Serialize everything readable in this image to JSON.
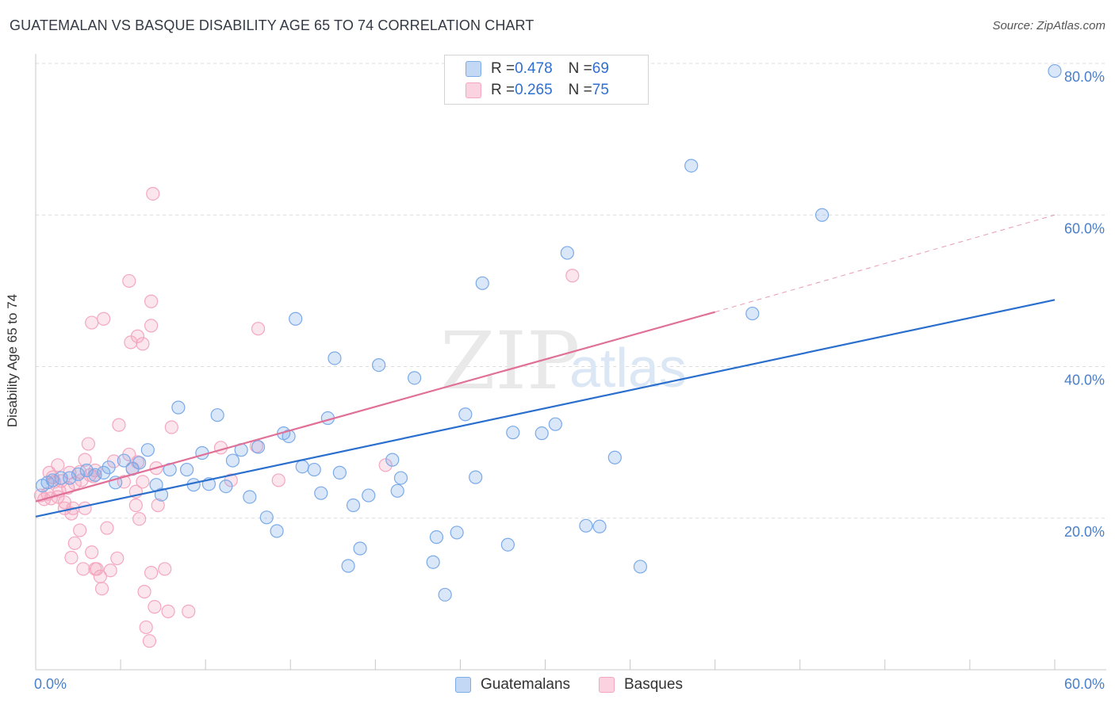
{
  "title": "GUATEMALAN VS BASQUE DISABILITY AGE 65 TO 74 CORRELATION CHART",
  "source": "Source: ZipAtlas.com",
  "watermark": {
    "zip": "ZIP",
    "atlas": "atlas"
  },
  "legend": {
    "row1": {
      "r_label": "R = ",
      "r_value": "0.478",
      "n_label": "N = ",
      "n_value": "69"
    },
    "row2": {
      "r_label": "R = ",
      "r_value": "0.265",
      "n_label": "N = ",
      "n_value": "75"
    }
  },
  "chart_data": {
    "type": "scatter",
    "title": "GUATEMALAN VS BASQUE DISABILITY AGE 65 TO 74 CORRELATION CHART",
    "xlabel": "",
    "ylabel": "Disability Age 65 to 74",
    "xlim": [
      0,
      60
    ],
    "ylim": [
      0,
      80
    ],
    "x_tick_labels": [
      "0.0%",
      "60.0%"
    ],
    "y_ticks": [
      20,
      40,
      60,
      80
    ],
    "y_tick_labels": [
      "20.0%",
      "40.0%",
      "60.0%",
      "80.0%"
    ],
    "colors": {
      "guatemalans": "#7aaae8",
      "basques": "#f4a7bf",
      "guatemalans_line": "#2a6fcd",
      "basques_line": "#e07098"
    },
    "series": [
      {
        "name": "Guatemalans",
        "r": 0.478,
        "n": 69,
        "trend": {
          "x0": 0,
          "y0": 20.2,
          "x1": 60,
          "y1": 48.8
        },
        "points": [
          [
            0.4,
            24.3
          ],
          [
            0.7,
            24.7
          ],
          [
            1.0,
            25.0
          ],
          [
            1.5,
            25.3
          ],
          [
            2.0,
            25.3
          ],
          [
            2.5,
            25.8
          ],
          [
            3.0,
            26.3
          ],
          [
            3.5,
            25.7
          ],
          [
            4.0,
            26.0
          ],
          [
            4.3,
            26.7
          ],
          [
            4.7,
            24.7
          ],
          [
            5.2,
            27.6
          ],
          [
            5.7,
            26.5
          ],
          [
            6.1,
            27.3
          ],
          [
            6.6,
            29.0
          ],
          [
            7.1,
            24.4
          ],
          [
            7.4,
            23.1
          ],
          [
            7.9,
            26.4
          ],
          [
            8.4,
            34.6
          ],
          [
            8.9,
            26.4
          ],
          [
            9.3,
            24.4
          ],
          [
            9.8,
            28.6
          ],
          [
            10.2,
            24.5
          ],
          [
            10.7,
            33.6
          ],
          [
            11.2,
            24.2
          ],
          [
            11.6,
            27.6
          ],
          [
            12.1,
            29.0
          ],
          [
            12.6,
            22.8
          ],
          [
            13.1,
            29.4
          ],
          [
            13.6,
            20.1
          ],
          [
            14.2,
            18.3
          ],
          [
            14.6,
            31.2
          ],
          [
            14.9,
            30.8
          ],
          [
            15.3,
            46.3
          ],
          [
            15.7,
            26.8
          ],
          [
            16.4,
            26.4
          ],
          [
            16.8,
            23.3
          ],
          [
            17.2,
            33.2
          ],
          [
            17.6,
            41.1
          ],
          [
            17.9,
            26.0
          ],
          [
            18.4,
            13.7
          ],
          [
            18.7,
            21.7
          ],
          [
            19.1,
            16.0
          ],
          [
            19.6,
            23.0
          ],
          [
            20.2,
            40.2
          ],
          [
            21.0,
            27.7
          ],
          [
            21.3,
            23.6
          ],
          [
            21.5,
            25.3
          ],
          [
            22.3,
            38.5
          ],
          [
            23.4,
            14.2
          ],
          [
            23.6,
            17.5
          ],
          [
            24.1,
            9.9
          ],
          [
            24.8,
            18.1
          ],
          [
            25.3,
            33.7
          ],
          [
            25.9,
            25.4
          ],
          [
            26.3,
            51.0
          ],
          [
            27.8,
            16.5
          ],
          [
            28.1,
            31.3
          ],
          [
            29.8,
            31.2
          ],
          [
            30.6,
            32.4
          ],
          [
            31.3,
            55.0
          ],
          [
            32.4,
            19.0
          ],
          [
            33.2,
            18.9
          ],
          [
            34.1,
            28.0
          ],
          [
            35.6,
            13.6
          ],
          [
            38.6,
            66.5
          ],
          [
            42.2,
            47.0
          ],
          [
            46.3,
            60.0
          ],
          [
            60.0,
            79.0
          ]
        ]
      },
      {
        "name": "Basques",
        "r": 0.265,
        "n": 75,
        "trend": {
          "x0": 0,
          "y0": 22.2,
          "x1": 40,
          "y1": 47.2,
          "x_dash_end": 60,
          "y_dash_end": 60
        },
        "points": [
          [
            0.3,
            23.0
          ],
          [
            0.5,
            22.5
          ],
          [
            0.7,
            23.2
          ],
          [
            0.9,
            22.6
          ],
          [
            1.1,
            24.8
          ],
          [
            1.3,
            22.8
          ],
          [
            0.8,
            26.0
          ],
          [
            1.3,
            27.0
          ],
          [
            1.0,
            25.4
          ],
          [
            1.4,
            23.6
          ],
          [
            1.7,
            22.1
          ],
          [
            1.9,
            24.0
          ],
          [
            2.0,
            26.0
          ],
          [
            2.2,
            21.3
          ],
          [
            1.7,
            21.3
          ],
          [
            2.1,
            20.6
          ],
          [
            1.5,
            24.9
          ],
          [
            2.3,
            24.6
          ],
          [
            2.6,
            26.1
          ],
          [
            2.9,
            27.7
          ],
          [
            3.2,
            25.7
          ],
          [
            2.7,
            25.0
          ],
          [
            3.4,
            25.5
          ],
          [
            3.5,
            26.3
          ],
          [
            2.9,
            21.3
          ],
          [
            2.6,
            18.4
          ],
          [
            2.3,
            16.7
          ],
          [
            2.1,
            14.8
          ],
          [
            2.8,
            13.3
          ],
          [
            3.3,
            15.5
          ],
          [
            3.6,
            13.3
          ],
          [
            3.8,
            12.3
          ],
          [
            3.1,
            29.8
          ],
          [
            4.2,
            18.7
          ],
          [
            3.5,
            13.3
          ],
          [
            3.9,
            10.7
          ],
          [
            3.3,
            45.8
          ],
          [
            4.0,
            46.3
          ],
          [
            4.4,
            13.1
          ],
          [
            4.8,
            14.7
          ],
          [
            4.6,
            27.5
          ],
          [
            4.9,
            32.3
          ],
          [
            5.2,
            24.8
          ],
          [
            5.5,
            28.4
          ],
          [
            5.6,
            43.2
          ],
          [
            6.0,
            44.0
          ],
          [
            6.3,
            43.0
          ],
          [
            5.5,
            51.3
          ],
          [
            6.0,
            27.4
          ],
          [
            5.9,
            21.7
          ],
          [
            5.7,
            26.6
          ],
          [
            5.9,
            23.5
          ],
          [
            6.1,
            19.9
          ],
          [
            6.4,
            10.3
          ],
          [
            6.8,
            12.8
          ],
          [
            6.8,
            45.4
          ],
          [
            6.3,
            24.8
          ],
          [
            6.5,
            5.6
          ],
          [
            7.0,
            8.3
          ],
          [
            7.2,
            21.7
          ],
          [
            6.8,
            48.6
          ],
          [
            7.1,
            26.6
          ],
          [
            6.7,
            3.8
          ],
          [
            7.6,
            13.3
          ],
          [
            6.9,
            62.8
          ],
          [
            8.0,
            32.0
          ],
          [
            7.8,
            7.7
          ],
          [
            9.0,
            7.7
          ],
          [
            10.9,
            29.3
          ],
          [
            11.5,
            25.0
          ],
          [
            13.0,
            29.5
          ],
          [
            13.1,
            45.0
          ],
          [
            14.3,
            25.0
          ],
          [
            20.6,
            27.0
          ],
          [
            31.6,
            52.0
          ]
        ]
      }
    ]
  },
  "bottom_legend": {
    "guatemalans": "Guatemalans",
    "basques": "Basques"
  }
}
